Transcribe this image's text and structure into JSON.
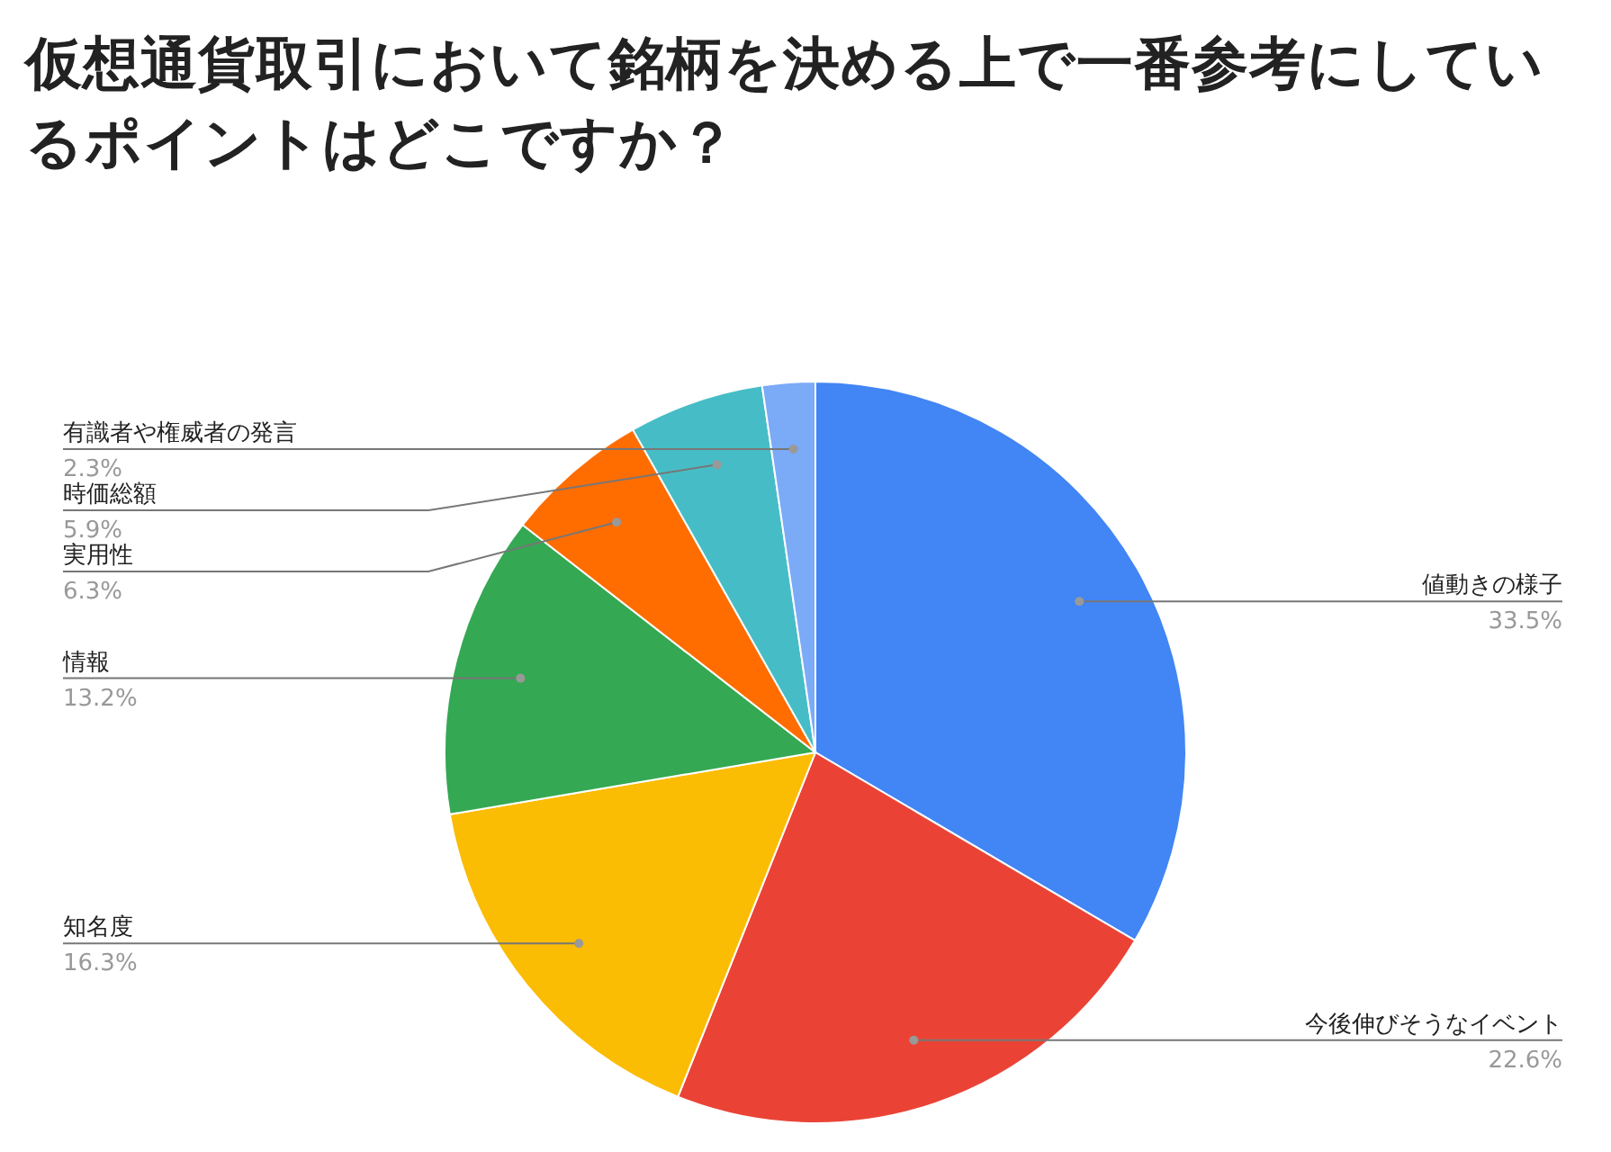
{
  "chart_data": {
    "type": "pie",
    "title": "仮想通貨取引において銘柄を決める上で一番参考にしているポイントはどこですか？",
    "categories": [
      "値動きの様子",
      "今後伸びそうなイベント",
      "知名度",
      "情報",
      "実用性",
      "時価総額",
      "有識者や権威者の発言"
    ],
    "values": [
      33.5,
      22.6,
      16.3,
      13.2,
      6.3,
      5.9,
      2.3
    ],
    "colors": [
      "#4285f4",
      "#ea4335",
      "#fbbc04",
      "#34a853",
      "#ff6d01",
      "#46bdc6",
      "#7baaf7"
    ],
    "value_labels": [
      "33.5%",
      "22.6%",
      "16.3%",
      "13.2%",
      "6.3%",
      "5.9%",
      "2.3%"
    ]
  }
}
